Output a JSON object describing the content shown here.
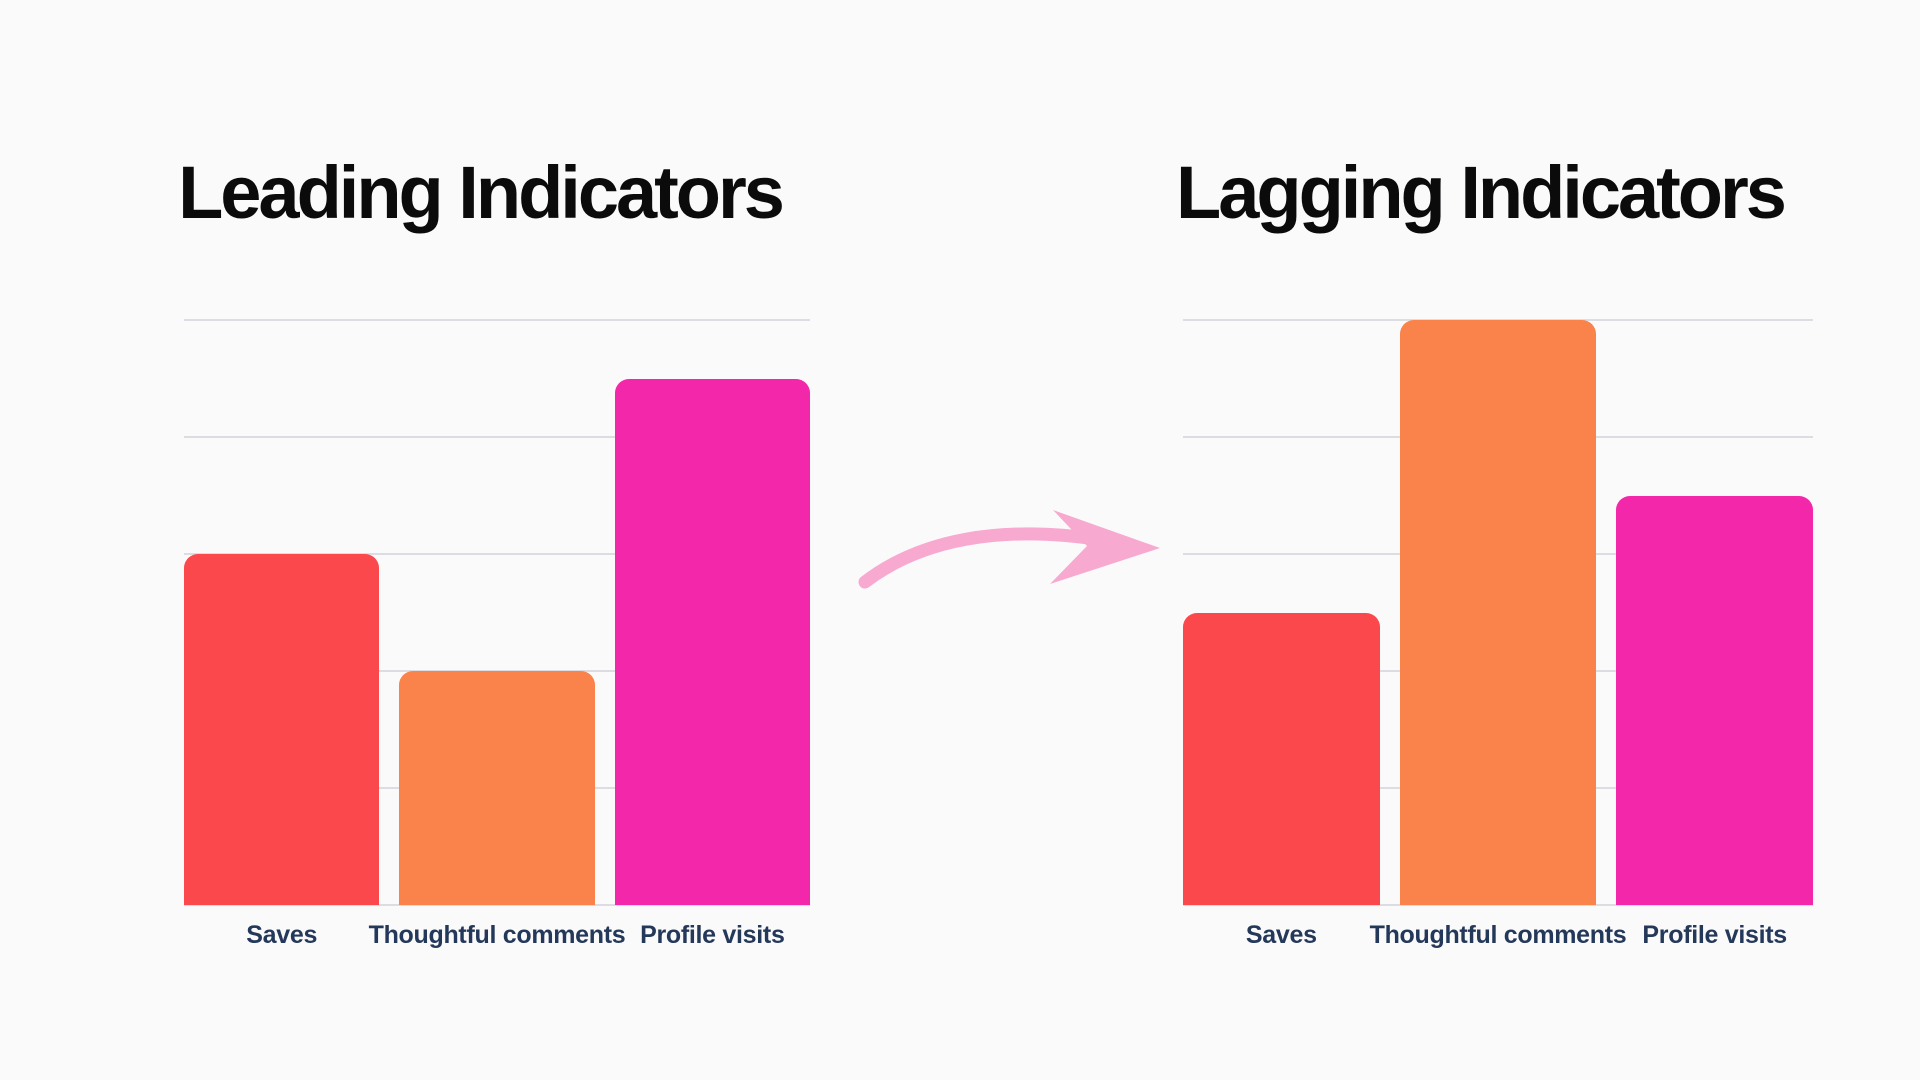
{
  "style": {
    "background": "#FBFAFB",
    "gridline_color": "#DCDCE2",
    "title_color": "#0B0B0C",
    "label_color": "#24385A",
    "arrow_color": "#F8A9D0"
  },
  "arrow": {
    "icon": "hand-drawn-curved-arrow-right",
    "color": "#F8A9D0"
  },
  "chart_data": [
    {
      "type": "bar",
      "title": "Leading Indicators",
      "categories": [
        "Saves",
        "Thoughtful comments",
        "Profile visits"
      ],
      "values": [
        3,
        2,
        4.5
      ],
      "bar_colors": [
        "#FA484D",
        "#FA824B",
        "#F327AA"
      ],
      "xlabel": "",
      "ylabel": "",
      "ylim": [
        0,
        5
      ],
      "ytick_step": 1,
      "grid": true,
      "legend": false
    },
    {
      "type": "bar",
      "title": "Lagging Indicators",
      "categories": [
        "Saves",
        "Thoughtful comments",
        "Profile visits"
      ],
      "values": [
        2.5,
        5,
        3.5
      ],
      "bar_colors": [
        "#FA484D",
        "#FA824B",
        "#F327AA"
      ],
      "xlabel": "",
      "ylabel": "",
      "ylim": [
        0,
        5
      ],
      "ytick_step": 1,
      "grid": true,
      "legend": false
    }
  ]
}
